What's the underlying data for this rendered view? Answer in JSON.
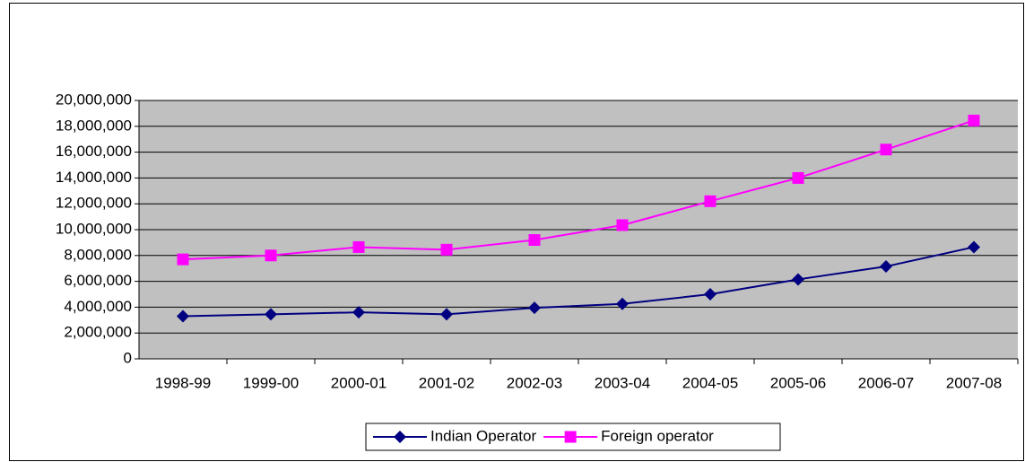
{
  "chart_data": {
    "type": "line",
    "categories": [
      "1998-99",
      "1999-00",
      "2000-01",
      "2001-02",
      "2002-03",
      "2003-04",
      "2004-05",
      "2005-06",
      "2006-07",
      "2007-08"
    ],
    "series": [
      {
        "name": "Indian Operator",
        "color": "#000080",
        "marker": "diamond",
        "values": [
          3300000,
          3450000,
          3600000,
          3450000,
          3950000,
          4250000,
          5000000,
          6150000,
          7150000,
          8650000
        ]
      },
      {
        "name": "Foreign operator",
        "color": "#ff00ff",
        "marker": "square",
        "values": [
          7700000,
          8000000,
          8650000,
          8450000,
          9200000,
          10350000,
          12200000,
          14000000,
          16200000,
          18450000
        ]
      }
    ],
    "ylim": [
      0,
      20000000
    ],
    "yticks": [
      0,
      {
        "value": 2000000,
        "label": "2,000,000"
      },
      {
        "value": 4000000,
        "label": "4,000,000"
      },
      {
        "value": 6000000,
        "label": "6,000,000"
      },
      {
        "value": 8000000,
        "label": "8,000,000"
      },
      {
        "value": 10000000,
        "label": "10,000,000"
      },
      {
        "value": 12000000,
        "label": "12,000,000"
      },
      {
        "value": 14000000,
        "label": "14,000,000"
      },
      {
        "value": 16000000,
        "label": "16,000,000"
      },
      {
        "value": 18000000,
        "label": "18,000,000"
      },
      {
        "value": 20000000,
        "label": "20,000,000"
      }
    ],
    "grid": true,
    "plot_background": "#c0c0c0",
    "legend": "bottom"
  }
}
